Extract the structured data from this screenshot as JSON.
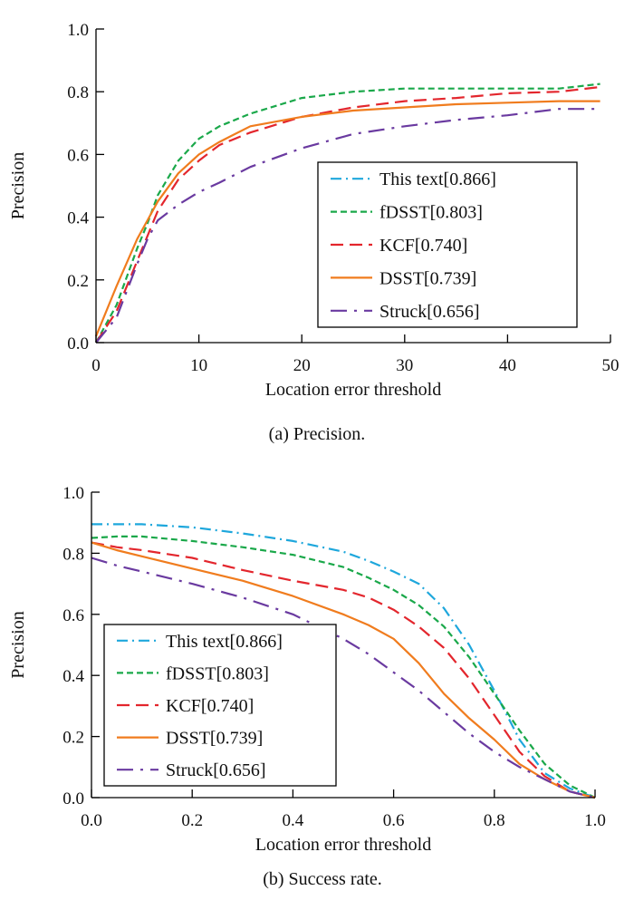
{
  "chart_data": [
    {
      "type": "line",
      "caption": "(a) Precision.",
      "xlabel": "Location error threshold",
      "ylabel": "Precision",
      "xlim": [
        0,
        50
      ],
      "ylim": [
        0,
        1.0
      ],
      "x_ticks": [
        "0",
        "10",
        "20",
        "30",
        "40",
        "50"
      ],
      "y_ticks": [
        "0.0",
        "0.2",
        "0.4",
        "0.6",
        "0.8",
        "1.0"
      ],
      "grid": false,
      "legend_position": "bottom-right",
      "series": [
        {
          "name": "This text[0.866]",
          "color": "#1ea7dc",
          "dash": "dashdot",
          "x": [],
          "y": []
        },
        {
          "name": "fDSST[0.803]",
          "color": "#1aa84a",
          "dash": "dashed",
          "x": [
            0,
            2,
            4,
            5,
            6,
            8,
            10,
            12,
            15,
            20,
            25,
            30,
            35,
            40,
            45,
            49
          ],
          "y": [
            0.0,
            0.12,
            0.3,
            0.38,
            0.47,
            0.58,
            0.65,
            0.69,
            0.73,
            0.78,
            0.8,
            0.81,
            0.81,
            0.81,
            0.81,
            0.825
          ]
        },
        {
          "name": "KCF[0.740]",
          "color": "#e3262d",
          "dash": "longdash",
          "x": [
            0,
            2,
            4,
            5,
            6,
            8,
            10,
            12,
            15,
            20,
            25,
            30,
            35,
            40,
            45,
            49
          ],
          "y": [
            0.0,
            0.1,
            0.26,
            0.34,
            0.42,
            0.52,
            0.58,
            0.63,
            0.67,
            0.72,
            0.75,
            0.77,
            0.78,
            0.795,
            0.8,
            0.815
          ]
        },
        {
          "name": "DSST[0.739]",
          "color": "#f07c1e",
          "dash": "solid",
          "x": [
            0,
            2,
            4,
            5,
            6,
            8,
            10,
            12,
            15,
            20,
            25,
            30,
            35,
            40,
            45,
            49
          ],
          "y": [
            0.02,
            0.18,
            0.33,
            0.39,
            0.45,
            0.54,
            0.6,
            0.64,
            0.69,
            0.72,
            0.74,
            0.75,
            0.76,
            0.765,
            0.77,
            0.77
          ]
        },
        {
          "name": "Struck[0.656]",
          "color": "#6a3aa0",
          "dash": "longdashdot",
          "x": [
            0,
            2,
            4,
            5,
            6,
            8,
            10,
            12,
            15,
            20,
            25,
            30,
            35,
            40,
            45,
            49
          ],
          "y": [
            0.0,
            0.08,
            0.25,
            0.33,
            0.39,
            0.44,
            0.48,
            0.51,
            0.56,
            0.62,
            0.665,
            0.69,
            0.71,
            0.725,
            0.745,
            0.745
          ]
        }
      ]
    },
    {
      "type": "line",
      "caption": "(b) Success rate.",
      "xlabel": "Location error threshold",
      "ylabel": "Precision",
      "xlim": [
        0,
        1.0
      ],
      "ylim": [
        0,
        1.0
      ],
      "x_ticks": [
        "0.0",
        "0.2",
        "0.4",
        "0.6",
        "0.8",
        "1.0"
      ],
      "y_ticks": [
        "0.0",
        "0.2",
        "0.4",
        "0.6",
        "0.8",
        "1.0"
      ],
      "grid": false,
      "legend_position": "bottom-left",
      "series": [
        {
          "name": "This text[0.866]",
          "color": "#1ea7dc",
          "dash": "dashdot",
          "x": [
            0,
            0.05,
            0.1,
            0.2,
            0.3,
            0.4,
            0.5,
            0.55,
            0.6,
            0.65,
            0.7,
            0.75,
            0.8,
            0.85,
            0.9,
            0.95,
            1.0
          ],
          "y": [
            0.895,
            0.895,
            0.895,
            0.885,
            0.865,
            0.84,
            0.805,
            0.775,
            0.74,
            0.7,
            0.62,
            0.5,
            0.35,
            0.19,
            0.08,
            0.03,
            0.0
          ]
        },
        {
          "name": "fDSST[0.803]",
          "color": "#1aa84a",
          "dash": "dashed",
          "x": [
            0,
            0.05,
            0.1,
            0.2,
            0.3,
            0.4,
            0.5,
            0.55,
            0.6,
            0.65,
            0.7,
            0.75,
            0.8,
            0.85,
            0.9,
            0.95,
            1.0
          ],
          "y": [
            0.85,
            0.855,
            0.855,
            0.84,
            0.82,
            0.795,
            0.755,
            0.72,
            0.68,
            0.63,
            0.56,
            0.46,
            0.34,
            0.22,
            0.11,
            0.04,
            0.0
          ]
        },
        {
          "name": "KCF[0.740]",
          "color": "#e3262d",
          "dash": "longdash",
          "x": [
            0,
            0.05,
            0.1,
            0.2,
            0.3,
            0.4,
            0.5,
            0.55,
            0.6,
            0.65,
            0.7,
            0.75,
            0.8,
            0.85,
            0.9,
            0.95,
            1.0
          ],
          "y": [
            0.835,
            0.82,
            0.81,
            0.785,
            0.745,
            0.71,
            0.68,
            0.655,
            0.615,
            0.56,
            0.49,
            0.39,
            0.27,
            0.15,
            0.07,
            0.02,
            0.0
          ]
        },
        {
          "name": "DSST[0.739]",
          "color": "#f07c1e",
          "dash": "solid",
          "x": [
            0,
            0.05,
            0.1,
            0.2,
            0.3,
            0.4,
            0.5,
            0.55,
            0.6,
            0.65,
            0.7,
            0.75,
            0.8,
            0.85,
            0.9,
            0.95,
            1.0
          ],
          "y": [
            0.835,
            0.81,
            0.79,
            0.75,
            0.71,
            0.66,
            0.6,
            0.565,
            0.52,
            0.44,
            0.34,
            0.26,
            0.19,
            0.11,
            0.06,
            0.02,
            0.0
          ]
        },
        {
          "name": "Struck[0.656]",
          "color": "#6a3aa0",
          "dash": "longdashdot",
          "x": [
            0,
            0.05,
            0.1,
            0.2,
            0.3,
            0.4,
            0.5,
            0.55,
            0.6,
            0.65,
            0.7,
            0.75,
            0.8,
            0.85,
            0.9,
            0.95,
            1.0
          ],
          "y": [
            0.785,
            0.76,
            0.74,
            0.7,
            0.655,
            0.6,
            0.52,
            0.47,
            0.41,
            0.35,
            0.28,
            0.21,
            0.15,
            0.1,
            0.06,
            0.02,
            0.0
          ]
        }
      ]
    }
  ]
}
